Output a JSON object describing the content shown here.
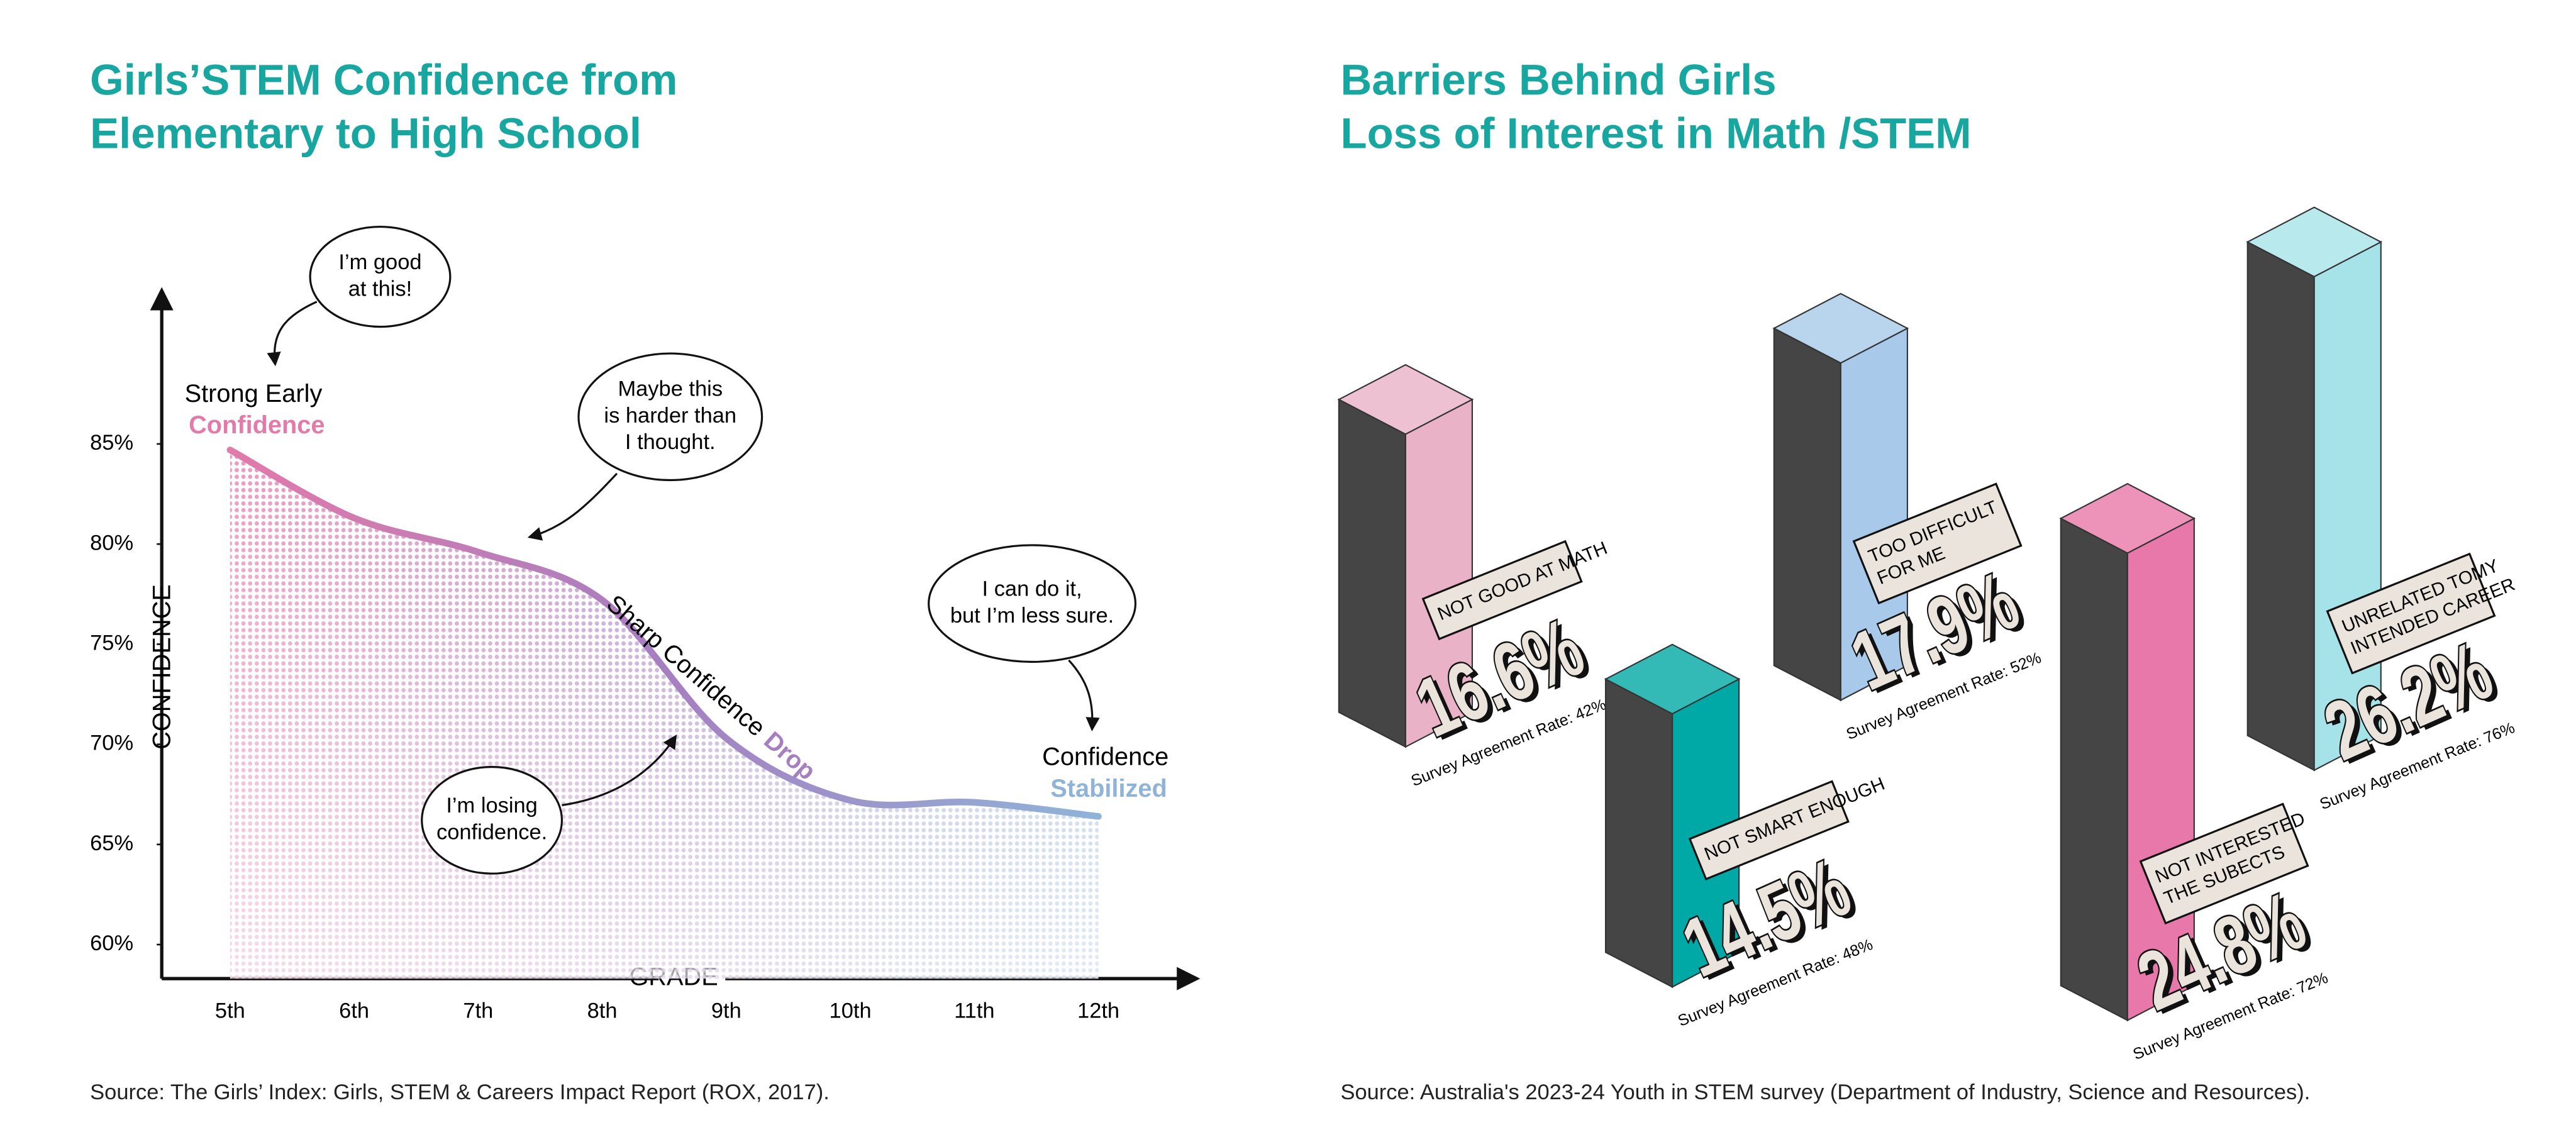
{
  "chart_data": [
    {
      "type": "line",
      "title": [
        "Girls’STEM Confidence from",
        "Elementary to High School"
      ],
      "xlabel": "GRADE",
      "ylabel": "CONFIDENCE",
      "categories": [
        "5th",
        "6th",
        "7th",
        "8th",
        "9th",
        "10th",
        "11th",
        "12th"
      ],
      "values": [
        84.7,
        81.3,
        79.6,
        77.2,
        70.3,
        67.2,
        67.1,
        66.4
      ],
      "ylim": [
        58.3,
        92.6
      ],
      "yticks": [
        {
          "value": 60,
          "label": "60%"
        },
        {
          "value": 65,
          "label": "65%"
        },
        {
          "value": 70,
          "label": "70%"
        },
        {
          "value": 75,
          "label": "75%"
        },
        {
          "value": 80,
          "label": "80%"
        },
        {
          "value": 85,
          "label": "85%"
        }
      ],
      "annotations": {
        "start": [
          "Strong Early",
          "Confidence"
        ],
        "drop": [
          "Sharp Confidence",
          "Drop"
        ],
        "end": [
          "Confidence",
          "Stabilized"
        ]
      },
      "bubbles": [
        [
          "I’m good",
          "at this!"
        ],
        [
          "Maybe this",
          "is harder than",
          "I thought."
        ],
        [
          "I can do it,",
          "but I’m less sure."
        ],
        [
          "I’m losing",
          "confidence."
        ]
      ],
      "source": "Source: The Girls’ Index: Girls, STEM & Careers Impact Report (ROX, 2017)."
    },
    {
      "type": "bar3d",
      "title": [
        "Barriers Behind Girls",
        "Loss of Interest in Math /STEM"
      ],
      "categories": [
        [
          "NOT GOOD AT MATH"
        ],
        [
          "TOO DIFFICULT",
          "FOR ME"
        ],
        [
          "NOT SMART ENOUGH"
        ],
        [
          "NOT INTERESTED",
          "THE SUBECTS"
        ],
        [
          "UNRELATED TOMY",
          "INTENDED CAREER"
        ]
      ],
      "values": [
        16.6,
        17.9,
        14.5,
        24.8,
        26.2
      ],
      "value_labels": [
        "16.6%",
        "17.9%",
        "14.5%",
        "24.8%",
        "26.2%"
      ],
      "colors": [
        "#e9b2c6",
        "#a8c9e9",
        "#00a9a5",
        "#e878a9",
        "#a6e3e8"
      ],
      "agreement_labels": [
        "Survey Agreement Rate: 42%",
        "Survey Agreement Rate: 52%",
        "Survey Agreement Rate: 48%",
        "Survey Agreement Rate: 72%",
        "Survey Agreement Rate: 76%"
      ],
      "source": "Source: Australia's 2023-24 Youth in STEM survey (Department of Industry, Science and Resources)."
    }
  ]
}
